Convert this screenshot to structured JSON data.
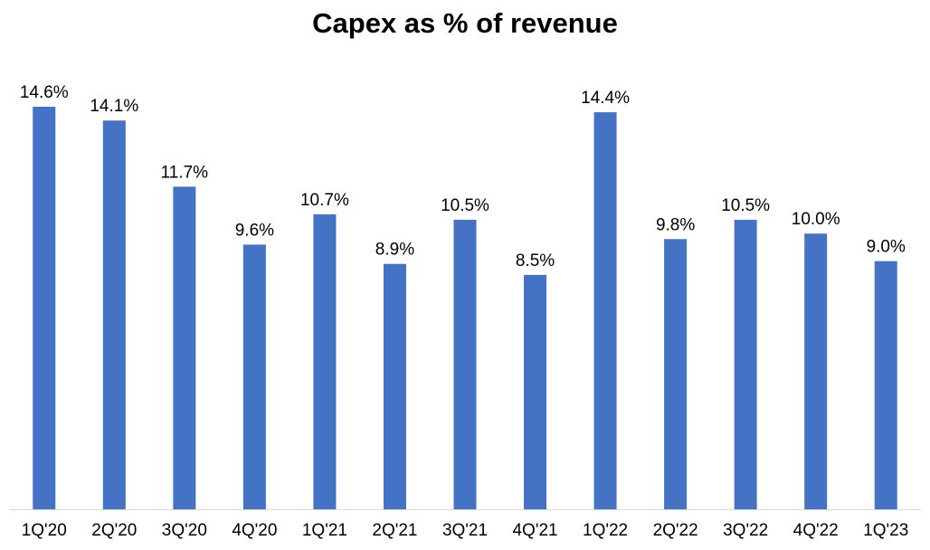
{
  "chart_data": {
    "type": "bar",
    "title": "Capex as % of revenue",
    "xlabel": "",
    "ylabel": "",
    "categories": [
      "1Q'20",
      "2Q'20",
      "3Q'20",
      "4Q'20",
      "1Q'21",
      "2Q'21",
      "3Q'21",
      "4Q'21",
      "1Q'22",
      "2Q'22",
      "3Q'22",
      "4Q'22",
      "1Q'23"
    ],
    "values": [
      14.6,
      14.1,
      11.7,
      9.6,
      10.7,
      8.9,
      10.5,
      8.5,
      14.4,
      9.8,
      10.5,
      10.0,
      9.0
    ],
    "data_labels": [
      "14.6%",
      "14.1%",
      "11.7%",
      "9.6%",
      "10.7%",
      "8.9%",
      "10.5%",
      "8.5%",
      "14.4%",
      "9.8%",
      "10.5%",
      "10.0%",
      "9.0%"
    ],
    "ylim": [
      0,
      14.6
    ],
    "grid": false,
    "legend": "none",
    "bar_color": "#4472C4",
    "axis_color": "#D9D9D9"
  }
}
